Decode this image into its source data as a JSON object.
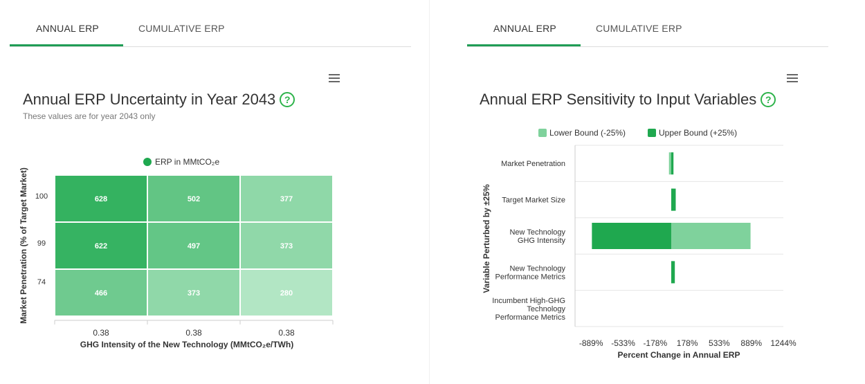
{
  "left_panel": {
    "tabs": [
      {
        "label": "ANNUAL ERP",
        "active": true
      },
      {
        "label": "CUMULATIVE ERP",
        "active": false
      }
    ],
    "title": "Annual ERP Uncertainty in Year 2043",
    "subtitle": "These values are for year 2043 only",
    "menu_icon": "hamburger-menu-icon",
    "help_icon": "question-circle-icon"
  },
  "right_panel": {
    "tabs": [
      {
        "label": "ANNUAL ERP",
        "active": true
      },
      {
        "label": "CUMULATIVE ERP",
        "active": false
      }
    ],
    "title": "Annual ERP Sensitivity to Input Variables",
    "menu_icon": "hamburger-menu-icon",
    "help_icon": "question-circle-icon"
  },
  "colors": {
    "accent": "#1f9d55",
    "help": "#2db34a",
    "legend_dot": "#1fa84f",
    "lower_bound": "#7fd29c",
    "upper_bound": "#1fa84f"
  },
  "chart_data": [
    {
      "type": "heatmap",
      "legend": "ERP in MMtCO₂e",
      "xlabel": "GHG Intensity of the New Technology (MMtCO₂e/TWh)",
      "ylabel": "Market Penetration (% of Target Market)",
      "x_categories": [
        "0.38",
        "0.38",
        "0.38"
      ],
      "y_categories": [
        "100",
        "99",
        "74"
      ],
      "values": [
        [
          628,
          502,
          377
        ],
        [
          622,
          497,
          373
        ],
        [
          466,
          373,
          280
        ]
      ]
    },
    {
      "type": "bar",
      "orientation": "horizontal",
      "xlabel": "Percent Change in Annual ERP",
      "ylabel": "Variable Perturbed by ±25%",
      "x_ticks": [
        "-889%",
        "-533%",
        "-178%",
        "178%",
        "533%",
        "889%",
        "1244%"
      ],
      "xlim": [
        -1067,
        1244
      ],
      "categories": [
        "Market Penetration",
        "Target Market Size",
        "New Technology GHG Intensity",
        "New Technology Performance Metrics",
        "Incumbent High-GHG Technology Performance Metrics"
      ],
      "series": [
        {
          "name": "Lower Bound (-25%)",
          "values": [
            -25,
            25,
            880,
            25,
            0
          ]
        },
        {
          "name": "Upper Bound (+25%)",
          "values": [
            25,
            50,
            -880,
            40,
            0
          ]
        }
      ]
    }
  ]
}
